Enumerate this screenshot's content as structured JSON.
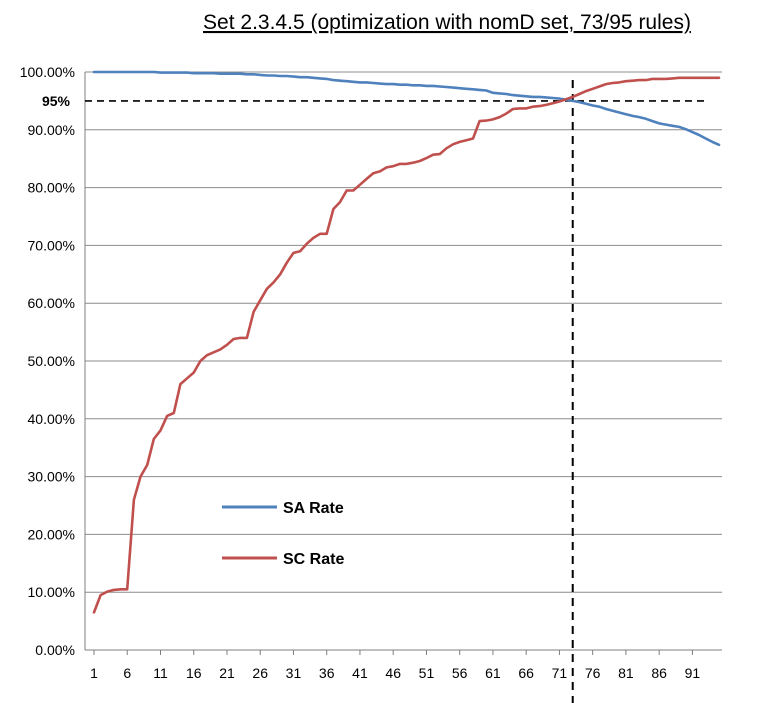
{
  "chart_data": {
    "type": "line",
    "title": "Set 2.3.4.5 (optimization with nomD set, 73/95 rules)",
    "xlabel": "",
    "ylabel": "",
    "xlim": [
      1,
      95
    ],
    "ylim": [
      0,
      100
    ],
    "y_tick_values": [
      0,
      10,
      20,
      30,
      40,
      50,
      60,
      70,
      80,
      90,
      100
    ],
    "y_tick_labels": [
      "0.00%",
      "10.00%",
      "20.00%",
      "30.00%",
      "40.00%",
      "50.00%",
      "60.00%",
      "70.00%",
      "80.00%",
      "90.00%",
      "100.00%"
    ],
    "x_tick_labels": [
      "1",
      "6",
      "11",
      "16",
      "21",
      "26",
      "31",
      "36",
      "41",
      "46",
      "51",
      "56",
      "61",
      "66",
      "71",
      "76",
      "81",
      "86",
      "91"
    ],
    "x": [
      1,
      2,
      3,
      4,
      5,
      6,
      7,
      8,
      9,
      10,
      11,
      12,
      13,
      14,
      15,
      16,
      17,
      18,
      19,
      20,
      21,
      22,
      23,
      24,
      25,
      26,
      27,
      28,
      29,
      30,
      31,
      32,
      33,
      34,
      35,
      36,
      37,
      38,
      39,
      40,
      41,
      42,
      43,
      44,
      45,
      46,
      47,
      48,
      49,
      50,
      51,
      52,
      53,
      54,
      55,
      56,
      57,
      58,
      59,
      60,
      61,
      62,
      63,
      64,
      65,
      66,
      67,
      68,
      69,
      70,
      71,
      72,
      73,
      74,
      75,
      76,
      77,
      78,
      79,
      80,
      81,
      82,
      83,
      84,
      85,
      86,
      87,
      88,
      89,
      90,
      91,
      92,
      93,
      94,
      95
    ],
    "series": [
      {
        "name": "SA Rate",
        "color": "#4f81bd",
        "values": [
          100,
          100,
          100,
          100,
          100,
          100,
          100,
          100,
          100,
          100,
          99.9,
          99.9,
          99.9,
          99.9,
          99.9,
          99.8,
          99.8,
          99.8,
          99.8,
          99.7,
          99.7,
          99.7,
          99.7,
          99.6,
          99.6,
          99.5,
          99.4,
          99.4,
          99.3,
          99.3,
          99.2,
          99.1,
          99.1,
          99.0,
          98.9,
          98.8,
          98.6,
          98.5,
          98.4,
          98.3,
          98.2,
          98.2,
          98.1,
          98.0,
          97.9,
          97.9,
          97.8,
          97.8,
          97.7,
          97.7,
          97.6,
          97.6,
          97.5,
          97.4,
          97.3,
          97.2,
          97.1,
          97.0,
          96.9,
          96.8,
          96.4,
          96.3,
          96.2,
          96.0,
          95.9,
          95.8,
          95.7,
          95.7,
          95.6,
          95.5,
          95.4,
          95.2,
          95.0,
          94.8,
          94.5,
          94.2,
          94.0,
          93.6,
          93.3,
          93.0,
          92.7,
          92.4,
          92.2,
          91.9,
          91.5,
          91.1,
          90.9,
          90.7,
          90.5,
          90.1,
          89.6,
          89.1,
          88.5,
          87.9,
          87.4
        ]
      },
      {
        "name": "SC Rate",
        "color": "#c0504d",
        "values": [
          6.5,
          9.5,
          10.1,
          10.4,
          10.5,
          10.5,
          26,
          30,
          32,
          36.5,
          38,
          40.5,
          41,
          46,
          47,
          48,
          50,
          51,
          51.5,
          52,
          52.8,
          53.8,
          54,
          54,
          58.5,
          60.5,
          62.5,
          63.6,
          65,
          67,
          68.7,
          69,
          70.3,
          71.3,
          72,
          72,
          76.3,
          77.5,
          79.5,
          79.5,
          80.5,
          81.5,
          82.5,
          82.8,
          83.5,
          83.7,
          84.1,
          84.1,
          84.3,
          84.6,
          85.1,
          85.7,
          85.8,
          86.8,
          87.5,
          87.9,
          88.2,
          88.5,
          91.5,
          91.6,
          91.8,
          92.2,
          92.8,
          93.6,
          93.7,
          93.7,
          94.0,
          94.1,
          94.3,
          94.6,
          94.9,
          95.3,
          95.7,
          96.2,
          96.7,
          97.1,
          97.5,
          97.9,
          98.1,
          98.2,
          98.4,
          98.5,
          98.6,
          98.6,
          98.8,
          98.8,
          98.8,
          98.9,
          99.0,
          99.0,
          99.0,
          99.0,
          99.0,
          99.0,
          99.0
        ]
      }
    ],
    "reference_lines": {
      "horizontal_y": 95,
      "horizontal_label": "95%",
      "vertical_x": 73,
      "style": "dashed",
      "color": "#000000"
    },
    "grid": "horizontal",
    "legend": {
      "placement": "lower-left"
    }
  }
}
